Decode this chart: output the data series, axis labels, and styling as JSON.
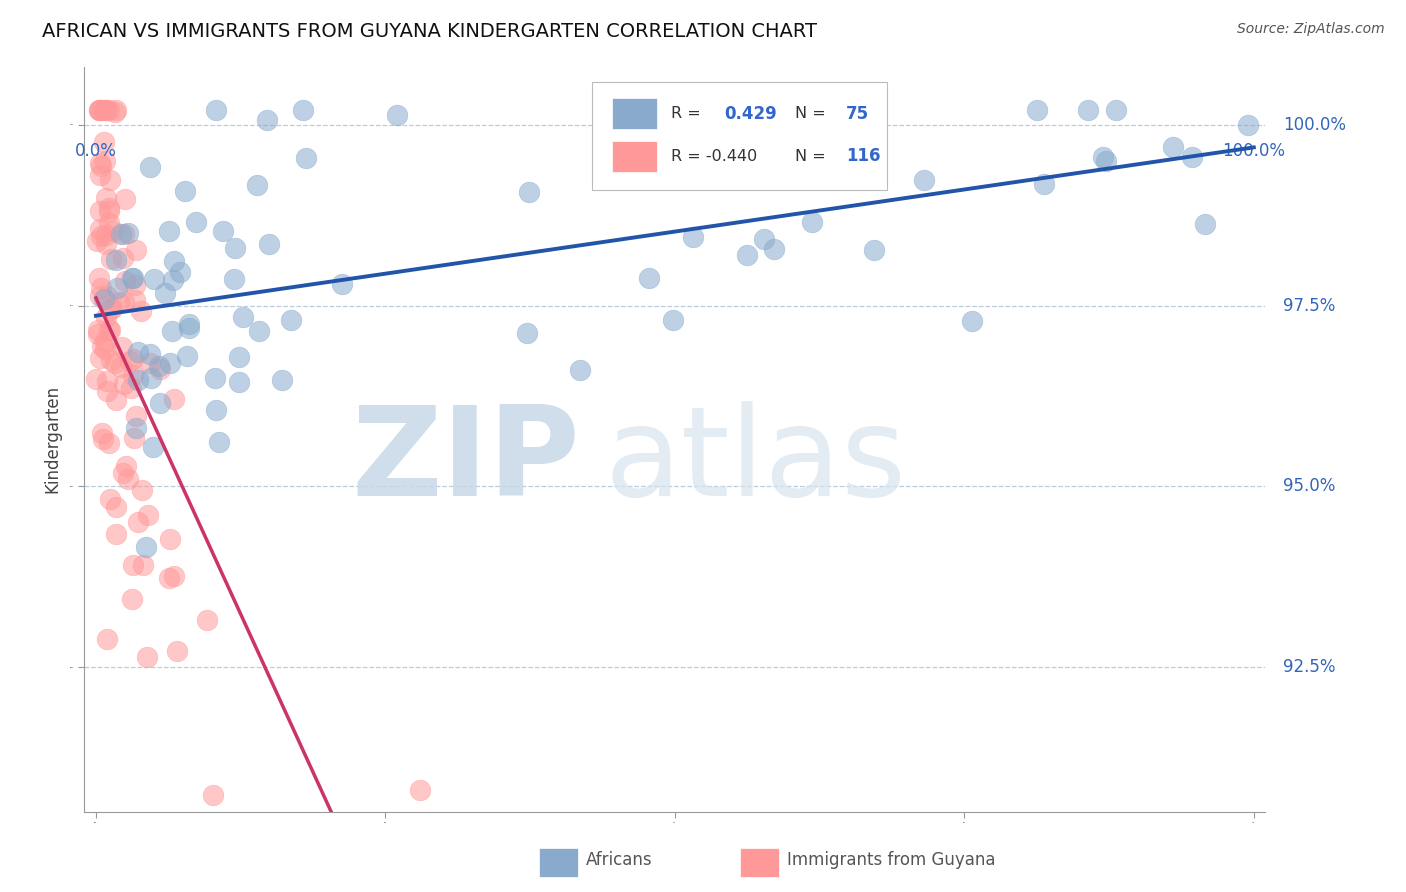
{
  "title": "AFRICAN VS IMMIGRANTS FROM GUYANA KINDERGARTEN CORRELATION CHART",
  "source_text": "Source: ZipAtlas.com",
  "ylabel": "Kindergarten",
  "ytick_labels": [
    "100.0%",
    "97.5%",
    "95.0%",
    "92.5%"
  ],
  "ytick_values": [
    1.0,
    0.975,
    0.95,
    0.925
  ],
  "xlim": [
    0.0,
    1.0
  ],
  "ylim": [
    0.905,
    1.008
  ],
  "blue_color": "#89AACC",
  "blue_edge_color": "#7799BB",
  "pink_color": "#FF9999",
  "pink_edge_color": "#EE8888",
  "blue_line_color": "#2255AA",
  "pink_line_color": "#CC3366",
  "watermark_zip": "ZIP",
  "watermark_atlas": "atlas",
  "watermark_color": "#C8D8E8",
  "background_color": "#FFFFFF",
  "title_fontsize": 14,
  "legend_r_blue": "R =",
  "legend_r_blue_val": "0.429",
  "legend_n_blue": "N =",
  "legend_n_blue_val": "75",
  "legend_r_pink": "R = -0.440",
  "legend_n_pink": "N =",
  "legend_n_pink_val": "116",
  "grid_color": "#BBCCDD",
  "axis_color": "#999999"
}
